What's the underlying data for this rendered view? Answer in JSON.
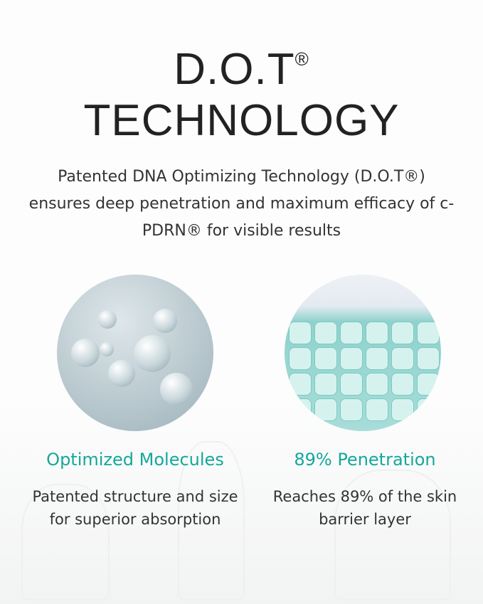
{
  "header": {
    "title_line1": "D.O.T",
    "registered": "®",
    "title_line2": "TECHNOLOGY",
    "subtitle": "Patented DNA Optimizing Technology (D.O.T®) ensures deep penetration and maximum efficacy of c-PDRN® for visible results"
  },
  "features": [
    {
      "title": "Optimized Molecules",
      "description": "Patented structure and size for superior absorption",
      "image": "molecule-illustration"
    },
    {
      "title": "89% Penetration",
      "description": "Reaches 89% of the skin barrier layer",
      "image": "skin-barrier-grid-illustration"
    }
  ],
  "colors": {
    "accent": "#14a89b",
    "text": "#2a2a2a"
  }
}
